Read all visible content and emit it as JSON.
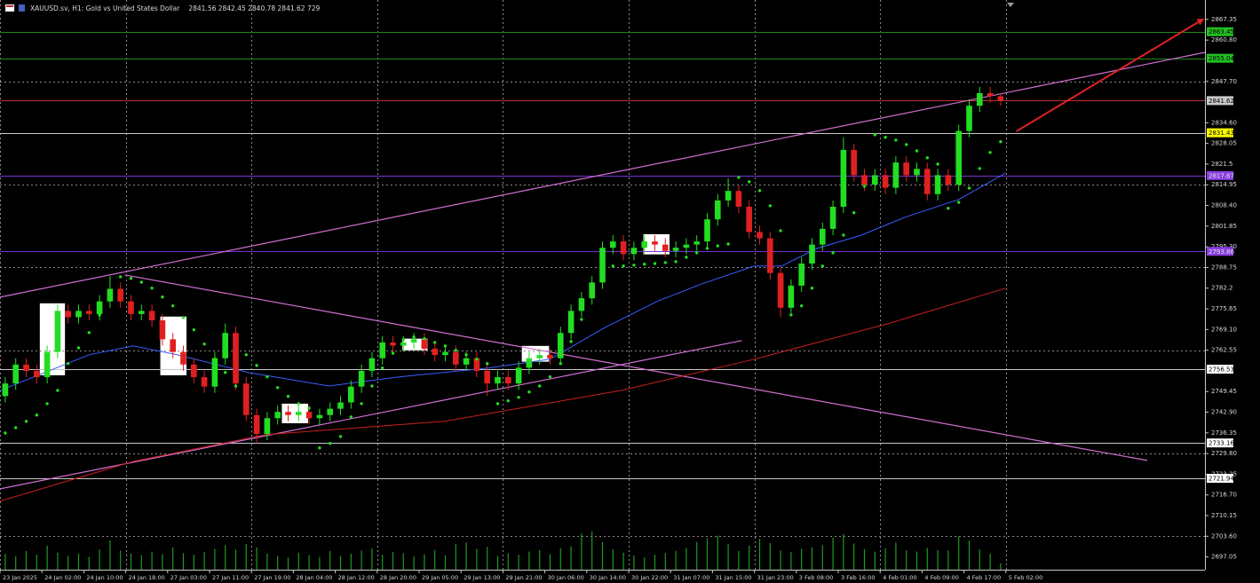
{
  "chart_data": {
    "type": "candlestick",
    "title": "XAUUSD.sv, H1: Gold vs United States Dollar",
    "subtitle": "2841.56 2842.45 2840.78 2841.62 729",
    "up_color": "#22dd22",
    "down_color": "#e02020",
    "xlim": [
      0,
      115
    ],
    "ylim": [
      2693.0,
      2873.5
    ],
    "grid": true,
    "xticks": [
      {
        "value": 0,
        "label": "23 Jan 2025"
      },
      {
        "value": 4,
        "label": "24 Jan 02:00"
      },
      {
        "value": 8,
        "label": "24 Jan 10:00"
      },
      {
        "value": 12,
        "label": "24 Jan 18:00"
      },
      {
        "value": 16,
        "label": "27 Jan 03:00"
      },
      {
        "value": 20,
        "label": "27 Jan 11:00"
      },
      {
        "value": 24,
        "label": "27 Jan 19:00"
      },
      {
        "value": 28,
        "label": "28 Jan 04:00"
      },
      {
        "value": 32,
        "label": "28 Jan 12:00"
      },
      {
        "value": 36,
        "label": "28 Jan 20:00"
      },
      {
        "value": 40,
        "label": "29 Jan 05:00"
      },
      {
        "value": 44,
        "label": "29 Jan 13:00"
      },
      {
        "value": 48,
        "label": "29 Jan 21:00"
      },
      {
        "value": 52,
        "label": "30 Jan 06:00"
      },
      {
        "value": 56,
        "label": "30 Jan 14:00"
      },
      {
        "value": 60,
        "label": "30 Jan 22:00"
      },
      {
        "value": 64,
        "label": "31 Jan 07:00"
      },
      {
        "value": 68,
        "label": "31 Jan 15:00"
      },
      {
        "value": 72,
        "label": "31 Jan 23:00"
      },
      {
        "value": 76,
        "label": "3 Feb 08:00"
      },
      {
        "value": 80,
        "label": "3 Feb 16:00"
      },
      {
        "value": 84,
        "label": "4 Feb 01:00"
      },
      {
        "value": 88,
        "label": "4 Feb 09:00"
      },
      {
        "value": 92,
        "label": "4 Feb 17:00"
      },
      {
        "value": 96,
        "label": "5 Feb 02:00"
      }
    ],
    "yticks": [
      2867.35,
      {
        "value": 2860.8,
        "label": "2860.80"
      },
      {
        "value": 2847.7,
        "label": "2847.70"
      },
      {
        "value": 2834.6,
        "label": "2834.60"
      },
      2828.05,
      2821.5,
      2814.95,
      {
        "value": 2808.4,
        "label": "2808.40"
      },
      2801.85,
      {
        "value": 2795.3,
        "label": "2795.30"
      },
      2788.75,
      2782.2,
      2775.65,
      {
        "value": 2769.1,
        "label": "2769.10"
      },
      2762.55,
      2749.45,
      {
        "value": 2742.9,
        "label": "2742.90"
      },
      2736.35,
      {
        "value": 2729.8,
        "label": "2729.80"
      },
      2723.25,
      {
        "value": 2716.7,
        "label": "2716.70"
      },
      2710.15,
      {
        "value": 2703.6,
        "label": "2703.60"
      },
      2697.05
    ],
    "open": [
      2748,
      2752,
      2758,
      2756,
      2754,
      2762,
      2775,
      2773,
      2775,
      2774,
      2778,
      2782,
      2778,
      2774,
      2775,
      2772,
      2766,
      2762,
      2758,
      2754,
      2751,
      2760,
      2768,
      2752,
      2742,
      2736,
      2741,
      2743,
      2742,
      2743,
      2741,
      2742,
      2744,
      2746,
      2751,
      2756,
      2760,
      2765,
      2764,
      2765,
      2766,
      2763,
      2761,
      2762,
      2758,
      2760,
      2756,
      2752,
      2754,
      2752,
      2757,
      2760,
      2761,
      2760,
      2768,
      2775,
      2779,
      2784,
      2795,
      2797,
      2793,
      2795,
      2797,
      2796,
      2794,
      2795,
      2796,
      2797,
      2804,
      2810,
      2813,
      2808,
      2800,
      2798,
      2787,
      2776,
      2783,
      2790,
      2796,
      2801,
      2808,
      2826,
      2818,
      2815,
      2818,
      2814,
      2822,
      2818,
      2820,
      2812,
      2818,
      2815,
      2832,
      2840,
      2844,
      2843
    ],
    "high": [
      2754,
      2760,
      2760,
      2758,
      2764,
      2777,
      2777,
      2777,
      2777,
      2780,
      2786,
      2784,
      2780,
      2777,
      2777,
      2774,
      2768,
      2764,
      2760,
      2756,
      2762,
      2771,
      2770,
      2754,
      2744,
      2743,
      2745,
      2745,
      2745,
      2745,
      2744,
      2746,
      2748,
      2753,
      2758,
      2762,
      2767,
      2767,
      2767,
      2768,
      2768,
      2765,
      2764,
      2764,
      2762,
      2762,
      2758,
      2756,
      2756,
      2759,
      2762,
      2763,
      2763,
      2770,
      2777,
      2781,
      2786,
      2797,
      2799,
      2799,
      2797,
      2799,
      2799,
      2798,
      2797,
      2798,
      2799,
      2806,
      2812,
      2817,
      2815,
      2810,
      2802,
      2800,
      2789,
      2785,
      2792,
      2798,
      2803,
      2810,
      2830,
      2828,
      2820,
      2820,
      2820,
      2824,
      2824,
      2822,
      2822,
      2820,
      2820,
      2834,
      2842,
      2846,
      2846,
      2844
    ],
    "low": [
      2746,
      2750,
      2754,
      2752,
      2752,
      2760,
      2771,
      2771,
      2772,
      2772,
      2776,
      2776,
      2772,
      2772,
      2770,
      2764,
      2760,
      2756,
      2752,
      2749,
      2749,
      2758,
      2750,
      2740,
      2733,
      2734,
      2739,
      2740,
      2740,
      2739,
      2739,
      2740,
      2742,
      2744,
      2749,
      2754,
      2758,
      2762,
      2762,
      2763,
      2761,
      2759,
      2759,
      2756,
      2756,
      2754,
      2748,
      2750,
      2750,
      2750,
      2755,
      2758,
      2758,
      2758,
      2766,
      2773,
      2777,
      2782,
      2793,
      2791,
      2791,
      2793,
      2794,
      2792,
      2792,
      2793,
      2794,
      2795,
      2802,
      2808,
      2806,
      2798,
      2796,
      2785,
      2773,
      2774,
      2781,
      2788,
      2794,
      2799,
      2806,
      2816,
      2813,
      2813,
      2812,
      2812,
      2816,
      2816,
      2810,
      2810,
      2813,
      2813,
      2830,
      2838,
      2841,
      2840
    ],
    "close": [
      2752,
      2758,
      2756,
      2754,
      2762,
      2775,
      2773,
      2775,
      2774,
      2778,
      2782,
      2778,
      2774,
      2775,
      2772,
      2766,
      2762,
      2758,
      2754,
      2751,
      2760,
      2768,
      2752,
      2742,
      2736,
      2741,
      2743,
      2742,
      2743,
      2741,
      2742,
      2744,
      2746,
      2751,
      2756,
      2760,
      2765,
      2764,
      2765,
      2766,
      2763,
      2761,
      2762,
      2758,
      2760,
      2756,
      2752,
      2754,
      2752,
      2757,
      2760,
      2761,
      2760,
      2768,
      2775,
      2779,
      2784,
      2795,
      2797,
      2793,
      2795,
      2797,
      2796,
      2794,
      2795,
      2796,
      2797,
      2804,
      2810,
      2813,
      2808,
      2800,
      2798,
      2787,
      2776,
      2783,
      2790,
      2796,
      2801,
      2808,
      2826,
      2818,
      2815,
      2818,
      2814,
      2822,
      2818,
      2820,
      2812,
      2818,
      2815,
      2832,
      2840,
      2844,
      2843,
      2841.62
    ],
    "indicators": [
      {
        "type": "line",
        "color": "#c82020",
        "x": [
          0,
          12.7,
          25.4,
          42.4,
          59.3,
          72,
          84.7,
          96
        ],
        "values": [
          2714.7,
          2727.3,
          2735.8,
          2740.0,
          2749.8,
          2759.7,
          2770.9,
          2782.2
        ]
      },
      {
        "type": "line",
        "color": "#3a5cff",
        "x": [
          0,
          8.5,
          12.7,
          16.9,
          23.7,
          31.4,
          38.1,
          46.6,
          52.5,
          57.6,
          62.7,
          67,
          72,
          74.6,
          78,
          82.2,
          86.4,
          91.5,
          96
        ],
        "values": [
          2749.8,
          2761.1,
          2763.9,
          2761.1,
          2755.5,
          2751.2,
          2754.1,
          2756.9,
          2759.7,
          2769.5,
          2778.0,
          2783.6,
          2789.2,
          2789.2,
          2794.8,
          2799.0,
          2804.7,
          2810.3,
          2818.7
        ]
      },
      {
        "type": "dots",
        "color": "#22dd22",
        "values": [
          2736.3,
          2738.0,
          2740.0,
          2742.0,
          2745.6,
          2749.8,
          2758.3,
          2763.3,
          2768.1,
          2773.7,
          2779.4,
          2785.8,
          2785.3,
          2784.1,
          2782.2,
          2779.4,
          2776.6,
          2772.9,
          2769.0,
          2764.5,
          2759.7,
          2755.5,
          2751.2,
          2761.1,
          2757.7,
          2754.1,
          2750.7,
          2747.9,
          2745.6,
          2744.2,
          2731.6,
          2733.0,
          2735.2,
          2741.4,
          2745.6,
          2751.2,
          2756.9,
          2761.6,
          2765.9,
          2766.7,
          2766.2,
          2765.0,
          2763.9,
          2762.5,
          2761.1,
          2759.7,
          2758.3,
          2745.6,
          2746.5,
          2747.6,
          2749.3,
          2751.2,
          2754.1,
          2758.3,
          2765.3,
          2772.3,
          2780.8,
          2787.8,
          2789.2,
          2789.2,
          2789.5,
          2789.8,
          2790.0,
          2790.3,
          2790.6,
          2792.0,
          2793.4,
          2794.8,
          2795.6,
          2796.2,
          2817.3,
          2815.9,
          2813.1,
          2808.3,
          2800.4,
          2773.7,
          2776.6,
          2782.2,
          2789.2,
          2793.4,
          2799.0,
          2806.1,
          2814.5,
          2830.8,
          2830.0,
          2829.1,
          2827.7,
          2825.7,
          2823.5,
          2821.5,
          2807.5,
          2809.4,
          2813.9,
          2820.1,
          2825.2,
          2828.6
        ]
      }
    ],
    "volume": {
      "color": "#1f9a1f",
      "ylim": [
        0,
        10000
      ],
      "values": [
        3000,
        2500,
        3500,
        2800,
        4500,
        3200,
        2600,
        3000,
        2400,
        3800,
        5500,
        3600,
        3000,
        2700,
        3400,
        2900,
        4200,
        3100,
        2800,
        3300,
        3900,
        4600,
        3800,
        4800,
        4200,
        3000,
        2600,
        2300,
        3200,
        2700,
        2400,
        3500,
        2600,
        3000,
        3600,
        4000,
        2800,
        3300,
        3100,
        2500,
        2900,
        3700,
        2700,
        4800,
        5100,
        3900,
        4300,
        2600,
        3100,
        2800,
        3400,
        3700,
        2900,
        4000,
        4400,
        6800,
        7200,
        5200,
        3800,
        3200,
        2700,
        2300,
        2800,
        3100,
        3500,
        4100,
        5200,
        5900,
        6400,
        4800,
        3500,
        4500,
        5800,
        5000,
        3600,
        3300,
        3900,
        4200,
        4600,
        6000,
        6700,
        4900,
        3900,
        3400,
        4000,
        5100,
        3600,
        3400,
        4100,
        3700,
        3600,
        6200,
        5500,
        3800,
        3000,
        1200
      ]
    },
    "levels": [
      {
        "value": 2863.45,
        "color": "#1c8a1c",
        "box": "#22c022",
        "text_color": "#000000"
      },
      {
        "value": 2855.04,
        "color": "#1c8a1c",
        "box": "#22c022",
        "text_color": "#000000"
      },
      {
        "value": 2841.62,
        "color": "#c03030",
        "box": "#c8c8c8",
        "text_color": "#000000"
      },
      {
        "value": 2831.43,
        "color": "#c8c8c8",
        "box": "#ffff00",
        "text_color": "#000000"
      },
      {
        "value": 2817.87,
        "color": "#7a2fd0",
        "box": "#8a3ee0",
        "text_color": "#e0e0e0"
      },
      {
        "value": 2793.86,
        "color": "#7a2fd0",
        "box": "#8a3ee0",
        "text_color": "#e0e0e0"
      },
      {
        "value": 2756.53,
        "color": "#c8c8c8",
        "box": "#ffffff",
        "text_color": "#000000"
      },
      {
        "value": 2733.16,
        "color": "#c8c8c8",
        "box": "#ffffff",
        "text_color": "#000000"
      },
      {
        "value": 2721.94,
        "color": "#c8c8c8",
        "box": "#ffffff",
        "text_color": "#000000"
      }
    ],
    "trendlines": [
      {
        "color": "#d070d0",
        "x": [
          0,
          115
        ],
        "values": [
          2779.35,
          2856.9
        ]
      },
      {
        "color": "#d070d0",
        "x": [
          11.9,
          109.5
        ],
        "values": [
          2786.4,
          2727.6
        ]
      },
      {
        "color": "#d070d0",
        "x": [
          0,
          70.8
        ],
        "values": [
          2718.6,
          2765.6
        ]
      }
    ],
    "arrow": {
      "color": "#dd2222",
      "x": [
        97,
        114.8
      ],
      "values": [
        2831.9,
        2867.35
      ]
    },
    "boxes": [
      {
        "x": [
          3.8,
          6.2
        ],
        "values": [
          2754.6,
          2777.4
        ]
      },
      {
        "x": [
          15.3,
          17.8
        ],
        "values": [
          2754.6,
          2773.2
        ]
      },
      {
        "x": [
          26.9,
          29.4
        ],
        "values": [
          2739.4,
          2745.6
        ]
      },
      {
        "x": [
          38.4,
          40.8
        ],
        "values": [
          2762.5,
          2766.2
        ]
      },
      {
        "x": [
          49.8,
          52.4
        ],
        "values": [
          2758.9,
          2763.9
        ]
      },
      {
        "x": [
          61.4,
          63.9
        ],
        "values": [
          2792.9,
          2799.3
        ]
      }
    ]
  }
}
